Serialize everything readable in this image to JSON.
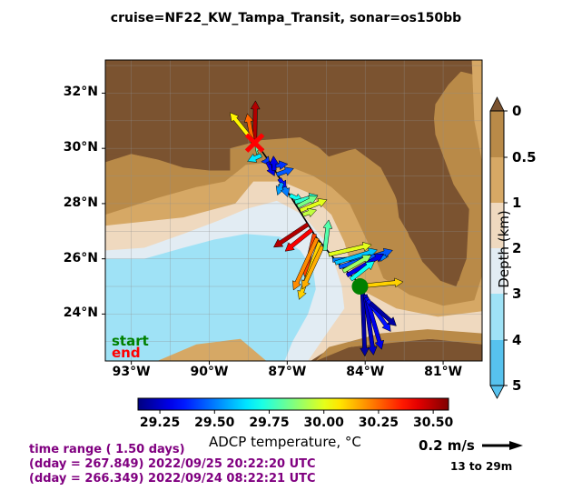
{
  "chart_data": {
    "type": "map-vector",
    "title": "cruise=NF22_KW_Tampa_Transit,   sonar=os150bb",
    "lon_range": [
      -94,
      -79.5
    ],
    "lat_range": [
      22.3,
      33.2
    ],
    "lat_ticks": [
      {
        "label": "32°N",
        "value": 32
      },
      {
        "label": "30°N",
        "value": 30
      },
      {
        "label": "28°N",
        "value": 28
      },
      {
        "label": "26°N",
        "value": 26
      },
      {
        "label": "24°N",
        "value": 24
      }
    ],
    "lon_ticks": [
      {
        "label": "93°W",
        "value": -93
      },
      {
        "label": "90°W",
        "value": -90
      },
      {
        "label": "87°W",
        "value": -87
      },
      {
        "label": "84°W",
        "value": -84
      },
      {
        "label": "81°W",
        "value": -81
      }
    ],
    "temperature_colorbar": {
      "label": "ADCP temperature, °C",
      "range": [
        29.15,
        30.57
      ],
      "ticks": [
        "29.25",
        "29.50",
        "29.75",
        "30.00",
        "30.25",
        "30.50"
      ]
    },
    "depth_colorbar": {
      "label": "Depth (km)",
      "ticks": [
        "0",
        "0.5",
        "1",
        "2",
        "3",
        "4",
        "5"
      ],
      "colors": [
        "#7b5330",
        "#b98a48",
        "#d6a865",
        "#efd9bf",
        "#e2ecf3",
        "#9fe2f6",
        "#57c2ee"
      ]
    },
    "track": [
      [
        -88.2,
        30.2
      ],
      [
        -87.6,
        29.4
      ],
      [
        -86.9,
        28.3
      ],
      [
        -85.9,
        26.8
      ],
      [
        -85.1,
        25.9
      ],
      [
        -84.1,
        25.0
      ]
    ],
    "start": {
      "label": "start",
      "lon": -84.2,
      "lat": 25.0,
      "color": "#008000"
    },
    "end": {
      "label": "end",
      "lon": -88.25,
      "lat": 30.2,
      "color": "#ff0000"
    },
    "vectors": [
      {
        "lon": -88.25,
        "lat": 30.2,
        "u": 0.01,
        "v": 0.55,
        "t": 30.5
      },
      {
        "lon": -88.3,
        "lat": 30.1,
        "u": -0.08,
        "v": 0.42,
        "t": 30.25
      },
      {
        "lon": -88.35,
        "lat": 30.3,
        "u": -0.29,
        "v": 0.36,
        "t": 30.05
      },
      {
        "lon": -88.1,
        "lat": 29.95,
        "u": -0.05,
        "v": 0.06,
        "t": 29.8
      },
      {
        "lon": -88.0,
        "lat": 29.75,
        "u": -0.18,
        "v": -0.08,
        "t": 29.65
      },
      {
        "lon": -87.85,
        "lat": 29.6,
        "u": 0.06,
        "v": -0.08,
        "t": 29.4
      },
      {
        "lon": -87.75,
        "lat": 29.5,
        "u": 0.09,
        "v": -0.18,
        "t": 29.3
      },
      {
        "lon": -87.6,
        "lat": 29.35,
        "u": 0.21,
        "v": 0.03,
        "t": 29.4
      },
      {
        "lon": -87.5,
        "lat": 29.2,
        "u": -0.01,
        "v": 0.19,
        "t": 29.3
      },
      {
        "lon": -87.4,
        "lat": 29.05,
        "u": 0.22,
        "v": 0.08,
        "t": 29.45
      },
      {
        "lon": -87.3,
        "lat": 28.9,
        "u": 0.09,
        "v": -0.14,
        "t": 29.35
      },
      {
        "lon": -87.2,
        "lat": 28.75,
        "u": -0.06,
        "v": -0.16,
        "t": 29.55
      },
      {
        "lon": -87.1,
        "lat": 28.6,
        "u": 0.04,
        "v": -0.13,
        "t": 29.5
      },
      {
        "lon": -86.9,
        "lat": 28.3,
        "u": 0.18,
        "v": -0.08,
        "t": 29.7
      },
      {
        "lon": -86.7,
        "lat": 28.05,
        "u": 0.3,
        "v": 0.09,
        "t": 29.75
      },
      {
        "lon": -86.6,
        "lat": 27.9,
        "u": 0.26,
        "v": 0.13,
        "t": 29.85
      },
      {
        "lon": -86.5,
        "lat": 27.75,
        "u": 0.35,
        "v": 0.14,
        "t": 30.0
      },
      {
        "lon": -86.4,
        "lat": 27.6,
        "u": 0.18,
        "v": 0.06,
        "t": 29.95
      },
      {
        "lon": -86.2,
        "lat": 27.25,
        "u": -0.45,
        "v": -0.3,
        "t": 30.5
      },
      {
        "lon": -86.05,
        "lat": 27.05,
        "u": -0.35,
        "v": -0.28,
        "t": 30.4
      },
      {
        "lon": -85.95,
        "lat": 26.9,
        "u": -0.13,
        "v": -0.56,
        "t": 30.3
      },
      {
        "lon": -85.85,
        "lat": 26.75,
        "u": -0.31,
        "v": -0.68,
        "t": 30.2
      },
      {
        "lon": -85.75,
        "lat": 26.6,
        "u": -0.27,
        "v": -0.75,
        "t": 30.1
      },
      {
        "lon": -85.65,
        "lat": 26.45,
        "u": -0.26,
        "v": -0.56,
        "t": 30.15
      },
      {
        "lon": -85.55,
        "lat": 26.3,
        "u": 0.05,
        "v": 0.4,
        "t": 29.8
      },
      {
        "lon": -85.4,
        "lat": 26.15,
        "u": 0.56,
        "v": 0.13,
        "t": 30.0
      },
      {
        "lon": -85.25,
        "lat": 25.95,
        "u": 0.73,
        "v": 0.05,
        "t": 29.5
      },
      {
        "lon": -85.15,
        "lat": 25.85,
        "u": 0.55,
        "v": 0.17,
        "t": 29.6
      },
      {
        "lon": -85.0,
        "lat": 25.7,
        "u": 0.7,
        "v": 0.22,
        "t": 29.45
      },
      {
        "lon": -84.85,
        "lat": 25.55,
        "u": 0.37,
        "v": 0.21,
        "t": 29.9
      },
      {
        "lon": -84.7,
        "lat": 25.4,
        "u": 0.48,
        "v": 0.28,
        "t": 29.3
      },
      {
        "lon": -84.55,
        "lat": 25.25,
        "u": 0.31,
        "v": 0.24,
        "t": 29.7
      },
      {
        "lon": -84.3,
        "lat": 25.0,
        "u": 0.6,
        "v": 0.06,
        "t": 30.1
      },
      {
        "lon": -84.1,
        "lat": 24.85,
        "u": 0.03,
        "v": -0.86,
        "t": 29.2
      },
      {
        "lon": -84.0,
        "lat": 24.7,
        "u": 0.11,
        "v": -0.79,
        "t": 29.25
      },
      {
        "lon": -83.95,
        "lat": 24.6,
        "u": 0.2,
        "v": -0.68,
        "t": 29.3
      },
      {
        "lon": -83.9,
        "lat": 24.5,
        "u": 0.3,
        "v": -0.41,
        "t": 29.35
      },
      {
        "lon": -83.8,
        "lat": 24.4,
        "u": 0.34,
        "v": -0.3,
        "t": 29.2
      }
    ],
    "grid": true
  },
  "legend": {
    "start": "start",
    "end": "end"
  },
  "info": {
    "line1": "time range ( 1.50 days)",
    "line2": "(dday = 267.849) 2022/09/25 20:22:20 UTC",
    "line3": "(dday = 266.349) 2022/09/24 08:22:21 UTC"
  },
  "scale": {
    "label": "0.2 m/s",
    "depth_range": "13 to 29m"
  }
}
